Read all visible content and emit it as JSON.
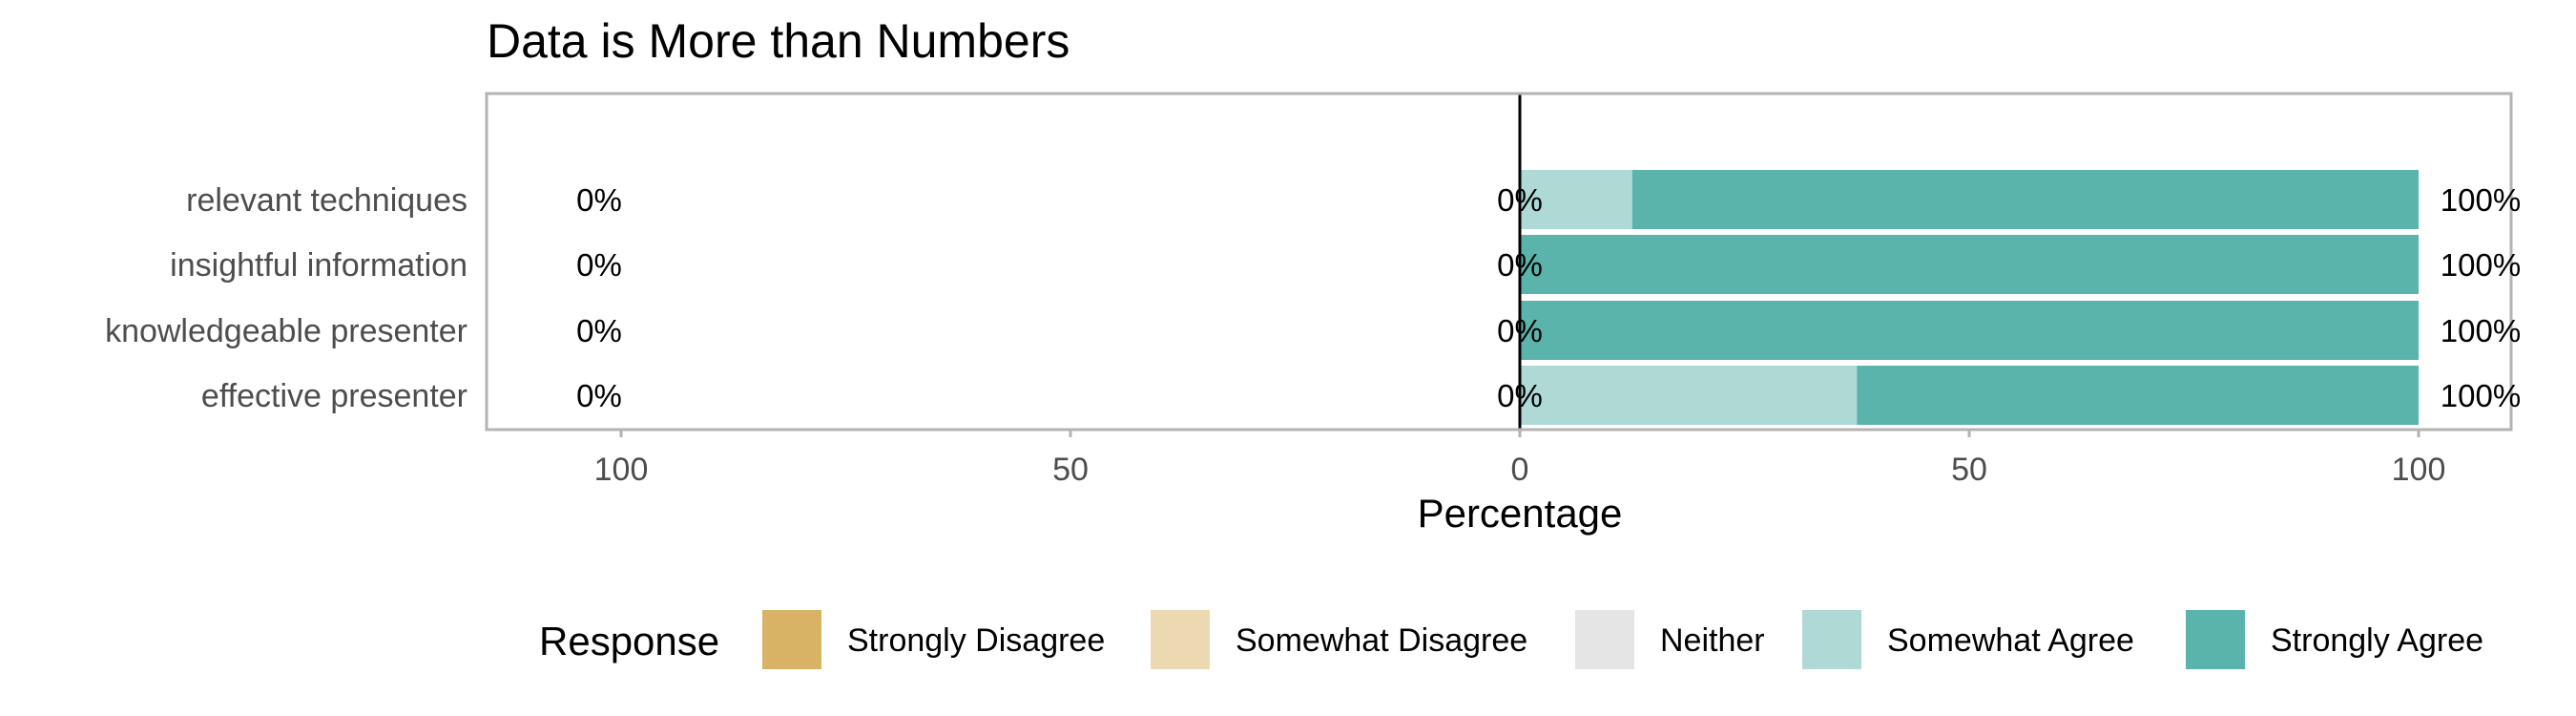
{
  "chart_data": {
    "type": "bar",
    "orientation": "horizontal",
    "stacked": "diverging",
    "title": "Data is More than Numbers",
    "xlabel": "Percentage",
    "ylabel": "",
    "xlim": [
      -110,
      110
    ],
    "x_ticks": [
      -100,
      -50,
      0,
      50,
      100
    ],
    "x_tick_labels": [
      "100",
      "50",
      "0",
      "50",
      "100"
    ],
    "categories": [
      "relevant techniques",
      "insightful information",
      "knowledgeable presenter",
      "effective presenter"
    ],
    "series": [
      {
        "name": "Strongly Disagree",
        "color": "#d8b365",
        "values": [
          0,
          0,
          0,
          0
        ]
      },
      {
        "name": "Somewhat Disagree",
        "color": "#ecd9b2",
        "values": [
          0,
          0,
          0,
          0
        ]
      },
      {
        "name": "Neither",
        "color": "#e5e5e5",
        "values": [
          0,
          0,
          0,
          0
        ]
      },
      {
        "name": "Somewhat Agree",
        "color": "#aed9d5",
        "values": [
          12.5,
          0,
          0,
          37.5
        ]
      },
      {
        "name": "Strongly Agree",
        "color": "#5ab4ac",
        "values": [
          87.5,
          100,
          100,
          62.5
        ]
      }
    ],
    "labels_low": [
      "0%",
      "0%",
      "0%",
      "0%"
    ],
    "labels_neutral": [
      "0%",
      "0%",
      "0%",
      "0%"
    ],
    "labels_high": [
      "100%",
      "100%",
      "100%",
      "100%"
    ],
    "legend": {
      "title": "Response",
      "position": "bottom"
    },
    "grid": true
  }
}
